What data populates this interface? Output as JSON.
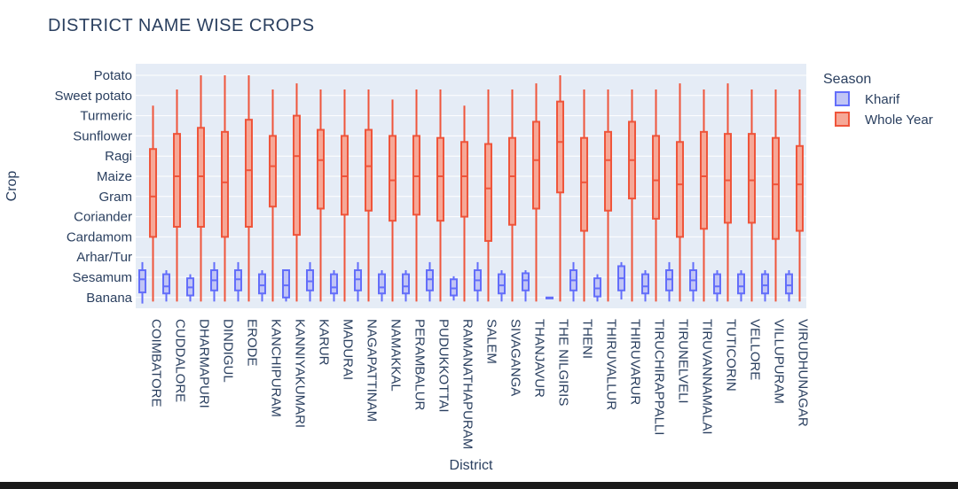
{
  "chart_data": {
    "type": "box",
    "title": "DISTRICT NAME WISE CROPS",
    "xlabel": "District",
    "ylabel": "Crop",
    "y_categories": [
      "Banana",
      "Sesamum",
      "Arhar/Tur",
      "Cardamom",
      "Coriander",
      "Gram",
      "Maize",
      "Ragi",
      "Sunflower",
      "Turmeric",
      "Sweet potato",
      "Potato"
    ],
    "categories": [
      "COIMBATORE",
      "CUDDALORE",
      "DHARMAPURI",
      "DINDIGUL",
      "ERODE",
      "KANCHIPURAM",
      "KANNIYAKUMARI",
      "KARUR",
      "MADURAI",
      "NAGAPATTINAM",
      "NAMAKKAL",
      "PERAMBALUR",
      "PUDUKKOTTAI",
      "RAMANATHAPURAM",
      "SALEM",
      "SIVAGANGA",
      "THANJAVUR",
      "THE NILGIRIS",
      "THENI",
      "THIRUVALLUR",
      "THIRUVARUR",
      "TIRUCHIRAPPALLI",
      "TIRUNELVELI",
      "TIRUVANNAMALAI",
      "TUTICORIN",
      "VELLORE",
      "VILLUPURAM",
      "VIRUDHUNAGAR"
    ],
    "legend_title": "Season",
    "legend_position": "right",
    "grid": true,
    "series": [
      {
        "name": "Kharif",
        "color": "#636efa",
        "fill": "#c1c5f5",
        "boxes": [
          [
            -0.3,
            0.25,
            0.9,
            1.35,
            1.75
          ],
          [
            -0.2,
            0.2,
            0.55,
            1.15,
            1.35
          ],
          [
            -0.2,
            0.1,
            0.5,
            0.95,
            1.15
          ],
          [
            -0.2,
            0.35,
            0.85,
            1.35,
            1.75
          ],
          [
            -0.2,
            0.35,
            0.9,
            1.35,
            1.75
          ],
          [
            -0.2,
            0.2,
            0.6,
            1.15,
            1.35
          ],
          [
            -0.2,
            0.0,
            0.6,
            1.35,
            1.35
          ],
          [
            -0.2,
            0.35,
            0.8,
            1.35,
            1.75
          ],
          [
            -0.2,
            0.2,
            0.5,
            1.15,
            1.35
          ],
          [
            -0.2,
            0.35,
            0.9,
            1.35,
            1.75
          ],
          [
            -0.2,
            0.2,
            0.5,
            1.15,
            1.35
          ],
          [
            -0.2,
            0.2,
            0.55,
            1.15,
            1.35
          ],
          [
            -0.2,
            0.35,
            0.9,
            1.35,
            1.75
          ],
          [
            -0.15,
            0.1,
            0.45,
            0.9,
            1.05
          ],
          [
            -0.2,
            0.35,
            0.85,
            1.35,
            1.75
          ],
          [
            -0.2,
            0.2,
            0.6,
            1.15,
            1.35
          ],
          [
            -0.2,
            0.35,
            0.85,
            1.2,
            1.35
          ],
          [
            -0.05,
            -0.05,
            -0.02,
            0.0,
            0.0
          ],
          [
            -0.2,
            0.35,
            0.85,
            1.35,
            1.75
          ],
          [
            -0.2,
            0.05,
            0.45,
            0.95,
            1.15
          ],
          [
            -0.1,
            0.35,
            0.95,
            1.55,
            1.75
          ],
          [
            -0.2,
            0.2,
            0.55,
            1.15,
            1.35
          ],
          [
            -0.2,
            0.35,
            0.9,
            1.35,
            1.75
          ],
          [
            -0.2,
            0.35,
            0.85,
            1.35,
            1.75
          ],
          [
            -0.2,
            0.2,
            0.55,
            1.15,
            1.35
          ],
          [
            -0.2,
            0.2,
            0.55,
            1.15,
            1.35
          ],
          [
            -0.2,
            0.2,
            0.6,
            1.15,
            1.35
          ],
          [
            -0.2,
            0.2,
            0.6,
            1.15,
            1.35
          ]
        ]
      },
      {
        "name": "Whole Year",
        "color": "#ef553b",
        "fill": "#f6a897",
        "boxes": [
          [
            -0.2,
            3.0,
            5.0,
            7.35,
            9.5
          ],
          [
            -0.2,
            3.5,
            6.0,
            8.1,
            10.3
          ],
          [
            -0.2,
            3.5,
            6.0,
            8.4,
            11.0
          ],
          [
            -0.2,
            3.0,
            5.7,
            8.2,
            11.0
          ],
          [
            -0.2,
            3.5,
            6.3,
            8.8,
            11.0
          ],
          [
            -0.2,
            4.5,
            6.5,
            8.0,
            10.3
          ],
          [
            -0.2,
            3.1,
            7.0,
            9.0,
            10.6
          ],
          [
            -0.2,
            4.4,
            6.8,
            8.3,
            10.3
          ],
          [
            -0.2,
            4.1,
            6.0,
            8.0,
            10.3
          ],
          [
            -0.2,
            4.3,
            6.5,
            8.3,
            10.3
          ],
          [
            -0.2,
            3.8,
            5.8,
            8.0,
            9.8
          ],
          [
            -0.2,
            4.1,
            6.0,
            8.0,
            10.3
          ],
          [
            -0.2,
            3.8,
            6.0,
            7.9,
            10.3
          ],
          [
            -0.2,
            4.0,
            6.0,
            7.7,
            9.5
          ],
          [
            -0.2,
            2.8,
            5.4,
            7.6,
            10.3
          ],
          [
            -0.2,
            3.6,
            6.0,
            7.9,
            10.3
          ],
          [
            -0.2,
            4.4,
            6.8,
            8.7,
            10.6
          ],
          [
            -0.2,
            5.2,
            7.7,
            9.7,
            11.0
          ],
          [
            -0.2,
            3.3,
            5.7,
            7.9,
            10.3
          ],
          [
            -0.2,
            4.3,
            6.8,
            8.2,
            10.3
          ],
          [
            -0.2,
            4.9,
            6.8,
            8.7,
            10.3
          ],
          [
            -0.2,
            3.9,
            5.8,
            8.0,
            10.3
          ],
          [
            -0.2,
            3.0,
            5.6,
            7.7,
            10.6
          ],
          [
            -0.2,
            3.4,
            6.0,
            8.2,
            10.3
          ],
          [
            -0.2,
            3.7,
            5.8,
            8.1,
            10.6
          ],
          [
            -0.2,
            3.7,
            5.8,
            8.1,
            10.3
          ],
          [
            -0.2,
            2.9,
            5.6,
            7.9,
            10.3
          ],
          [
            -0.2,
            3.3,
            5.6,
            7.5,
            10.3
          ]
        ]
      }
    ]
  }
}
